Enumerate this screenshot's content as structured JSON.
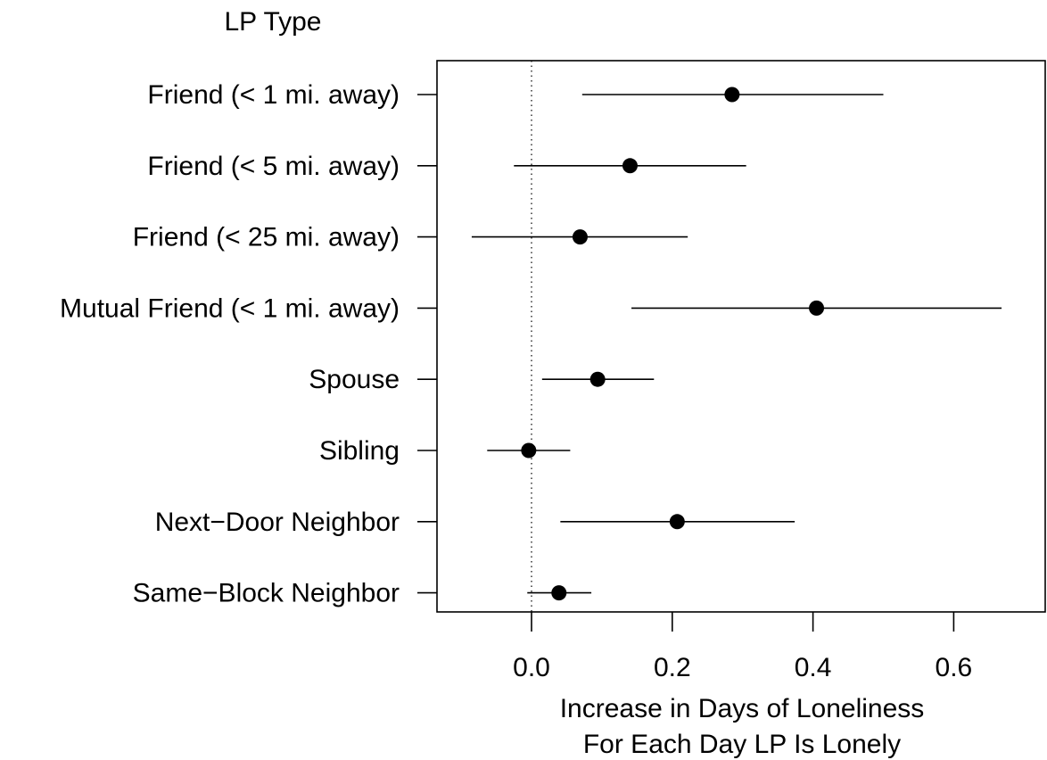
{
  "chart_data": {
    "type": "scatter",
    "style": "forest-plot (point estimate with interval)",
    "title": "",
    "ylabel": "LP Type",
    "xlabel_lines": [
      "Increase in Days of Loneliness",
      "For Each Day LP Is Lonely"
    ],
    "xlim": [
      -0.165,
      0.76
    ],
    "x_ticks": [
      0.0,
      0.2,
      0.4,
      0.6
    ],
    "x_tick_labels": [
      "0.0",
      "0.2",
      "0.4",
      "0.6"
    ],
    "reference_line": {
      "x": 0.0,
      "style": "dotted"
    },
    "grid": false,
    "legend": "none",
    "series": [
      {
        "label": "Friend (< 1 mi. away)",
        "estimate": 0.285,
        "lower": 0.072,
        "upper": 0.5
      },
      {
        "label": "Friend (< 5 mi. away)",
        "estimate": 0.14,
        "lower": -0.025,
        "upper": 0.305
      },
      {
        "label": "Friend (< 25 mi. away)",
        "estimate": 0.069,
        "lower": -0.085,
        "upper": 0.222
      },
      {
        "label": "Mutual Friend (< 1 mi. away)",
        "estimate": 0.405,
        "lower": 0.142,
        "upper": 0.668
      },
      {
        "label": "Spouse",
        "estimate": 0.094,
        "lower": 0.015,
        "upper": 0.174
      },
      {
        "label": "Sibling",
        "estimate": -0.004,
        "lower": -0.063,
        "upper": 0.055
      },
      {
        "label": "Next−Door Neighbor",
        "estimate": 0.207,
        "lower": 0.041,
        "upper": 0.374
      },
      {
        "label": "Same−Block Neighbor",
        "estimate": 0.039,
        "lower": -0.006,
        "upper": 0.085
      }
    ]
  }
}
